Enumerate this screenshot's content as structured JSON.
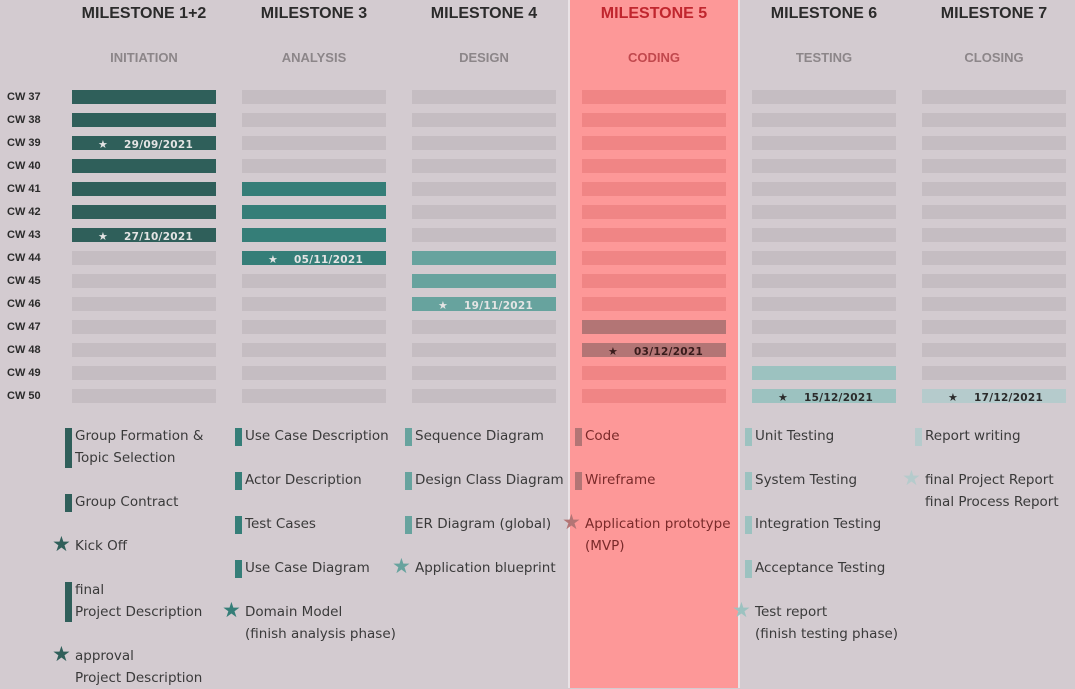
{
  "weeks": [
    "CW 37",
    "CW 38",
    "CW 39",
    "CW 40",
    "CW 41",
    "CW 42",
    "CW 43",
    "CW 44",
    "CW 45",
    "CW 46",
    "CW 47",
    "CW 48",
    "CW 49",
    "CW 50"
  ],
  "highlight_column": 3,
  "milestones": [
    {
      "title": "MILESTONE 1+2",
      "phase": "INITIATION",
      "color": "#2f5f5a",
      "label_color": "#e4e4e4",
      "start_week": "CW 37",
      "end_week": "CW 43",
      "markers": [
        {
          "week": "CW 39",
          "date": "29/09/2021"
        },
        {
          "week": "CW 43",
          "date": "27/10/2021"
        }
      ],
      "deliverables": [
        {
          "lines": [
            "Group Formation &",
            "Topic Selection"
          ],
          "star": false
        },
        {
          "lines": [
            "Group Contract"
          ],
          "star": false
        },
        {
          "lines": [
            "Kick Off"
          ],
          "star": true
        },
        {
          "lines": [
            "final",
            "Project Description"
          ],
          "star": false
        },
        {
          "lines": [
            "approval",
            "Project Description"
          ],
          "star": true
        }
      ]
    },
    {
      "title": "MILESTONE 3",
      "phase": "ANALYSIS",
      "color": "#357e78",
      "label_color": "#e4e4e4",
      "start_week": "CW 41",
      "end_week": "CW 44",
      "markers": [
        {
          "week": "CW 44",
          "date": "05/11/2021"
        }
      ],
      "deliverables": [
        {
          "lines": [
            "Use Case Description"
          ],
          "star": false
        },
        {
          "lines": [
            "Actor Description"
          ],
          "star": false
        },
        {
          "lines": [
            "Test Cases"
          ],
          "star": false
        },
        {
          "lines": [
            "Use Case Diagram"
          ],
          "star": false
        },
        {
          "lines": [
            "Domain Model",
            "(finish analysis phase)"
          ],
          "star": true
        }
      ]
    },
    {
      "title": "MILESTONE 4",
      "phase": "DESIGN",
      "color": "#67a39e",
      "label_color": "#e4e4e4",
      "start_week": "CW 44",
      "end_week": "CW 46",
      "markers": [
        {
          "week": "CW 46",
          "date": "19/11/2021"
        }
      ],
      "deliverables": [
        {
          "lines": [
            "Sequence Diagram"
          ],
          "star": false
        },
        {
          "lines": [
            "Design Class Diagram"
          ],
          "star": false
        },
        {
          "lines": [
            "ER Diagram (global)"
          ],
          "star": false
        },
        {
          "lines": [
            "Application blueprint"
          ],
          "star": true
        }
      ]
    },
    {
      "title": "MILESTONE 5",
      "phase": "CODING",
      "color": "#b37575",
      "label_color": "#3a1c1c",
      "start_week": "CW 47",
      "end_week": "CW 48",
      "markers": [
        {
          "week": "CW 48",
          "date": "03/12/2021"
        }
      ],
      "deliverables": [
        {
          "lines": [
            "Code"
          ],
          "star": false
        },
        {
          "lines": [
            "Wireframe"
          ],
          "star": false
        },
        {
          "lines": [
            "Application prototype",
            "(MVP)"
          ],
          "star": true
        }
      ]
    },
    {
      "title": "MILESTONE 6",
      "phase": "TESTING",
      "color": "#9cc2c0",
      "label_color": "#2b2b2b",
      "start_week": "CW 49",
      "end_week": "CW 50",
      "markers": [
        {
          "week": "CW 50",
          "date": "15/12/2021"
        }
      ],
      "deliverables": [
        {
          "lines": [
            "Unit Testing"
          ],
          "star": false
        },
        {
          "lines": [
            "System Testing"
          ],
          "star": false
        },
        {
          "lines": [
            "Integration Testing"
          ],
          "star": false
        },
        {
          "lines": [
            "Acceptance Testing"
          ],
          "star": false
        },
        {
          "lines": [
            "Test report",
            "(finish testing phase)"
          ],
          "star": true
        }
      ]
    },
    {
      "title": "MILESTONE 7",
      "phase": "CLOSING",
      "color": "#b5cbcc",
      "label_color": "#2b2b2b",
      "start_week": "CW 50",
      "end_week": "CW 50",
      "markers": [
        {
          "week": "CW 50",
          "date": "17/12/2021"
        }
      ],
      "deliverables": [
        {
          "lines": [
            "Report writing"
          ],
          "star": false
        },
        {
          "lines": [
            "final Project Report",
            "final Process Report"
          ],
          "star": true
        }
      ]
    }
  ],
  "chart_data": {
    "type": "bar",
    "categories": [
      "CW 37",
      "CW 38",
      "CW 39",
      "CW 40",
      "CW 41",
      "CW 42",
      "CW 43",
      "CW 44",
      "CW 45",
      "CW 46",
      "CW 47",
      "CW 48",
      "CW 49",
      "CW 50"
    ],
    "series": [
      {
        "name": "MILESTONE 1+2",
        "start": "CW 37",
        "end": "CW 43"
      },
      {
        "name": "MILESTONE 3",
        "start": "CW 41",
        "end": "CW 44"
      },
      {
        "name": "MILESTONE 4",
        "start": "CW 44",
        "end": "CW 46"
      },
      {
        "name": "MILESTONE 5",
        "start": "CW 47",
        "end": "CW 48"
      },
      {
        "name": "MILESTONE 6",
        "start": "CW 49",
        "end": "CW 50"
      },
      {
        "name": "MILESTONE 7",
        "start": "CW 50",
        "end": "CW 50"
      }
    ],
    "legend": "none",
    "grid": false
  },
  "colors": {
    "background": "#d3cbd0",
    "empty_cell": "#c5bdc2",
    "highlight_bg": "#fd9898",
    "highlight_cell": "#f08585",
    "highlight_title": "#c0262e",
    "highlight_phase": "#c1484d",
    "divider": "#e9e3e6"
  }
}
